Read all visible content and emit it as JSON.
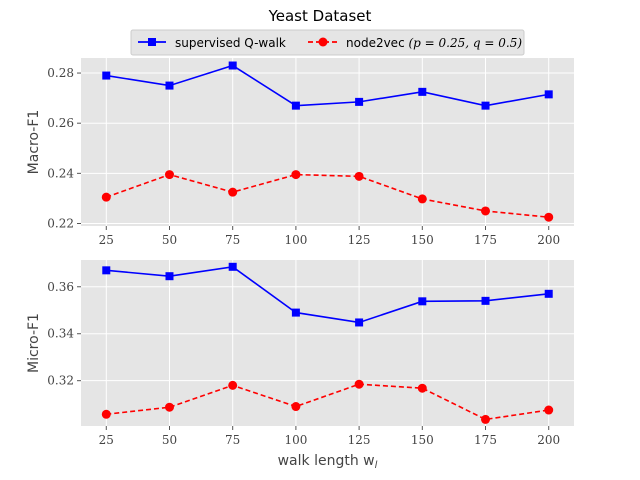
{
  "chart_data": [
    {
      "type": "line",
      "title": "Yeast Dataset",
      "xlabel": "",
      "ylabel": "Macro-F1",
      "x": [
        25,
        50,
        75,
        100,
        125,
        150,
        175,
        200
      ],
      "xticks": [
        "25",
        "50",
        "75",
        "100",
        "125",
        "150",
        "175",
        "200"
      ],
      "ylim": [
        0.219,
        0.286
      ],
      "yticks": [
        0.22,
        0.24,
        0.26,
        0.28
      ],
      "ytick_labels": [
        "0.22",
        "0.24",
        "0.26",
        "0.28"
      ],
      "grid": true,
      "series": [
        {
          "name": "supervised Q-walk",
          "color": "#0000ff",
          "marker": "square",
          "linestyle": "solid",
          "values": [
            0.279,
            0.275,
            0.283,
            0.267,
            0.2685,
            0.2725,
            0.267,
            0.2715
          ]
        },
        {
          "name": "node2vec (p = 0.25, q = 0.5)",
          "color": "#ff0000",
          "marker": "circle",
          "linestyle": "dashed",
          "values": [
            0.2305,
            0.2395,
            0.2325,
            0.2395,
            0.2388,
            0.2298,
            0.225,
            0.2225
          ]
        }
      ]
    },
    {
      "type": "line",
      "title": "",
      "xlabel": "walk length w",
      "xlabel_sub": "l",
      "ylabel": "Micro-F1",
      "x": [
        25,
        50,
        75,
        100,
        125,
        150,
        175,
        200
      ],
      "xticks": [
        "25",
        "50",
        "75",
        "100",
        "125",
        "150",
        "175",
        "200"
      ],
      "ylim": [
        0.3007,
        0.3714
      ],
      "yticks": [
        0.32,
        0.34,
        0.36
      ],
      "ytick_labels": [
        "0.32",
        "0.34",
        "0.36"
      ],
      "grid": true,
      "series": [
        {
          "name": "supervised Q-walk",
          "color": "#0000ff",
          "marker": "square",
          "linestyle": "solid",
          "values": [
            0.367,
            0.3645,
            0.3685,
            0.349,
            0.3448,
            0.3538,
            0.354,
            0.357
          ]
        },
        {
          "name": "node2vec (p = 0.25, q = 0.5)",
          "color": "#ff0000",
          "marker": "circle",
          "linestyle": "dashed",
          "values": [
            0.3057,
            0.3087,
            0.318,
            0.309,
            0.3185,
            0.3168,
            0.3035,
            0.3075
          ]
        }
      ]
    }
  ],
  "legend": {
    "placement": "top-center",
    "items": [
      {
        "label": "supervised Q-walk",
        "color": "#0000ff",
        "marker": "square",
        "linestyle": "solid"
      },
      {
        "label": "node2vec ",
        "math": "(p = 0.25, q = 0.5)",
        "color": "#ff0000",
        "marker": "circle",
        "linestyle": "dashed"
      }
    ]
  }
}
